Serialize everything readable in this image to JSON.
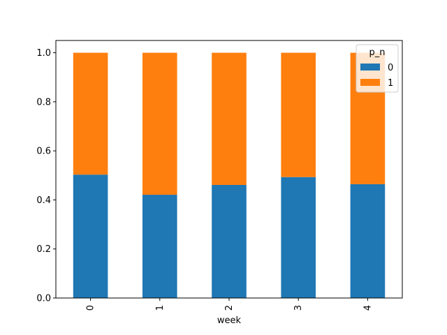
{
  "chart_data": {
    "type": "bar",
    "stacked": true,
    "categories": [
      "0",
      "1",
      "2",
      "3",
      "4"
    ],
    "series": [
      {
        "name": "0",
        "color": "#1f77b4",
        "values": [
          0.503,
          0.421,
          0.461,
          0.493,
          0.464
        ]
      },
      {
        "name": "1",
        "color": "#ff7f0e",
        "values": [
          0.497,
          0.579,
          0.539,
          0.507,
          0.536
        ]
      }
    ],
    "xlabel": "week",
    "ylabel": "",
    "ylim": [
      0,
      1.05
    ],
    "yticks": [
      "0.0",
      "0.2",
      "0.4",
      "0.6",
      "0.8",
      "1.0"
    ],
    "ytick_values": [
      0,
      0.2,
      0.4,
      0.6,
      0.8,
      1.0
    ],
    "legend": {
      "title": "p_n",
      "position": "top-right"
    },
    "grid": false
  }
}
